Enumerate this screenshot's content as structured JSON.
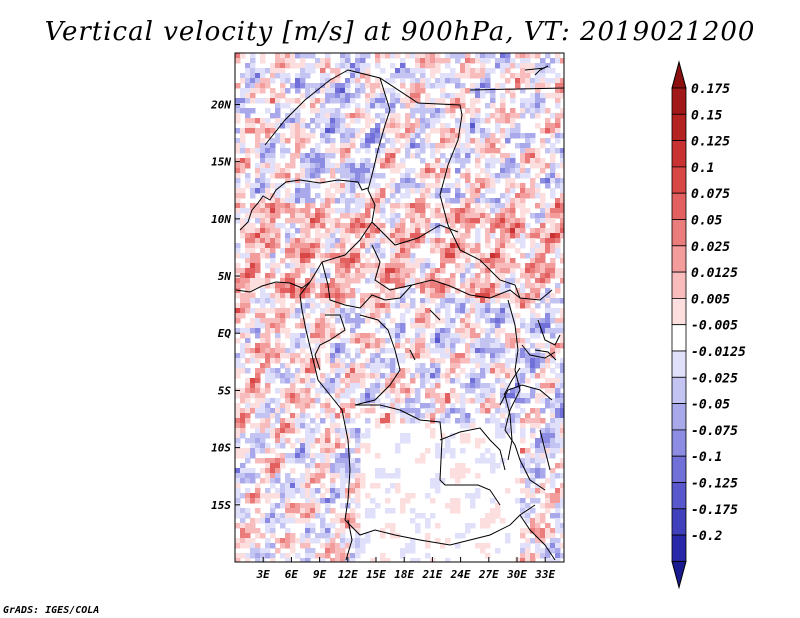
{
  "title": "Vertical velocity [m/s] at 900hPa, VT: 2019021200",
  "credit": "GrADS: IGES/COLA",
  "map": {
    "variable": "Vertical velocity",
    "units": "m/s",
    "level": "900hPa",
    "valid_time": "2019021200",
    "lon_range": [
      0,
      35
    ],
    "lat_range": [
      -20,
      24.5
    ],
    "lon_ticks": [
      {
        "value": 3,
        "label": "3E"
      },
      {
        "value": 6,
        "label": "6E"
      },
      {
        "value": 9,
        "label": "9E"
      },
      {
        "value": 12,
        "label": "12E"
      },
      {
        "value": 15,
        "label": "15E"
      },
      {
        "value": 18,
        "label": "18E"
      },
      {
        "value": 21,
        "label": "21E"
      },
      {
        "value": 24,
        "label": "24E"
      },
      {
        "value": 27,
        "label": "27E"
      },
      {
        "value": 30,
        "label": "30E"
      },
      {
        "value": 33,
        "label": "33E"
      }
    ],
    "lat_ticks": [
      {
        "value": 20,
        "label": "20N"
      },
      {
        "value": 15,
        "label": "15N"
      },
      {
        "value": 10,
        "label": "10N"
      },
      {
        "value": 5,
        "label": "5N"
      },
      {
        "value": 0,
        "label": "EQ"
      },
      {
        "value": -5,
        "label": "5S"
      },
      {
        "value": -10,
        "label": "10S"
      },
      {
        "value": -15,
        "label": "15S"
      }
    ]
  },
  "colorbar": {
    "levels": [
      {
        "label": "0.175",
        "color": "#a01818"
      },
      {
        "label": "0.15",
        "color": "#b42222"
      },
      {
        "label": "0.125",
        "color": "#c83232"
      },
      {
        "label": "0.1",
        "color": "#d84646"
      },
      {
        "label": "0.075",
        "color": "#e26060"
      },
      {
        "label": "0.05",
        "color": "#ea7c7c"
      },
      {
        "label": "0.025",
        "color": "#f29c9c"
      },
      {
        "label": "0.0125",
        "color": "#f8bcbc"
      },
      {
        "label": "0.005",
        "color": "#fcdede"
      },
      {
        "label": "-0.005",
        "color": "#ffffff"
      },
      {
        "label": "-0.0125",
        "color": "#e0e0fa"
      },
      {
        "label": "-0.025",
        "color": "#c4c4f2"
      },
      {
        "label": "-0.05",
        "color": "#a8a8ea"
      },
      {
        "label": "-0.075",
        "color": "#8c8ce2"
      },
      {
        "label": "-0.1",
        "color": "#7070d8"
      },
      {
        "label": "-0.125",
        "color": "#5858cc"
      },
      {
        "label": "-0.175",
        "color": "#4040bc"
      },
      {
        "label": "-0.2",
        "color": "#2828a8"
      }
    ],
    "top_arrow_color": "#8c1010",
    "bottom_arrow_color": "#1a1a90"
  }
}
